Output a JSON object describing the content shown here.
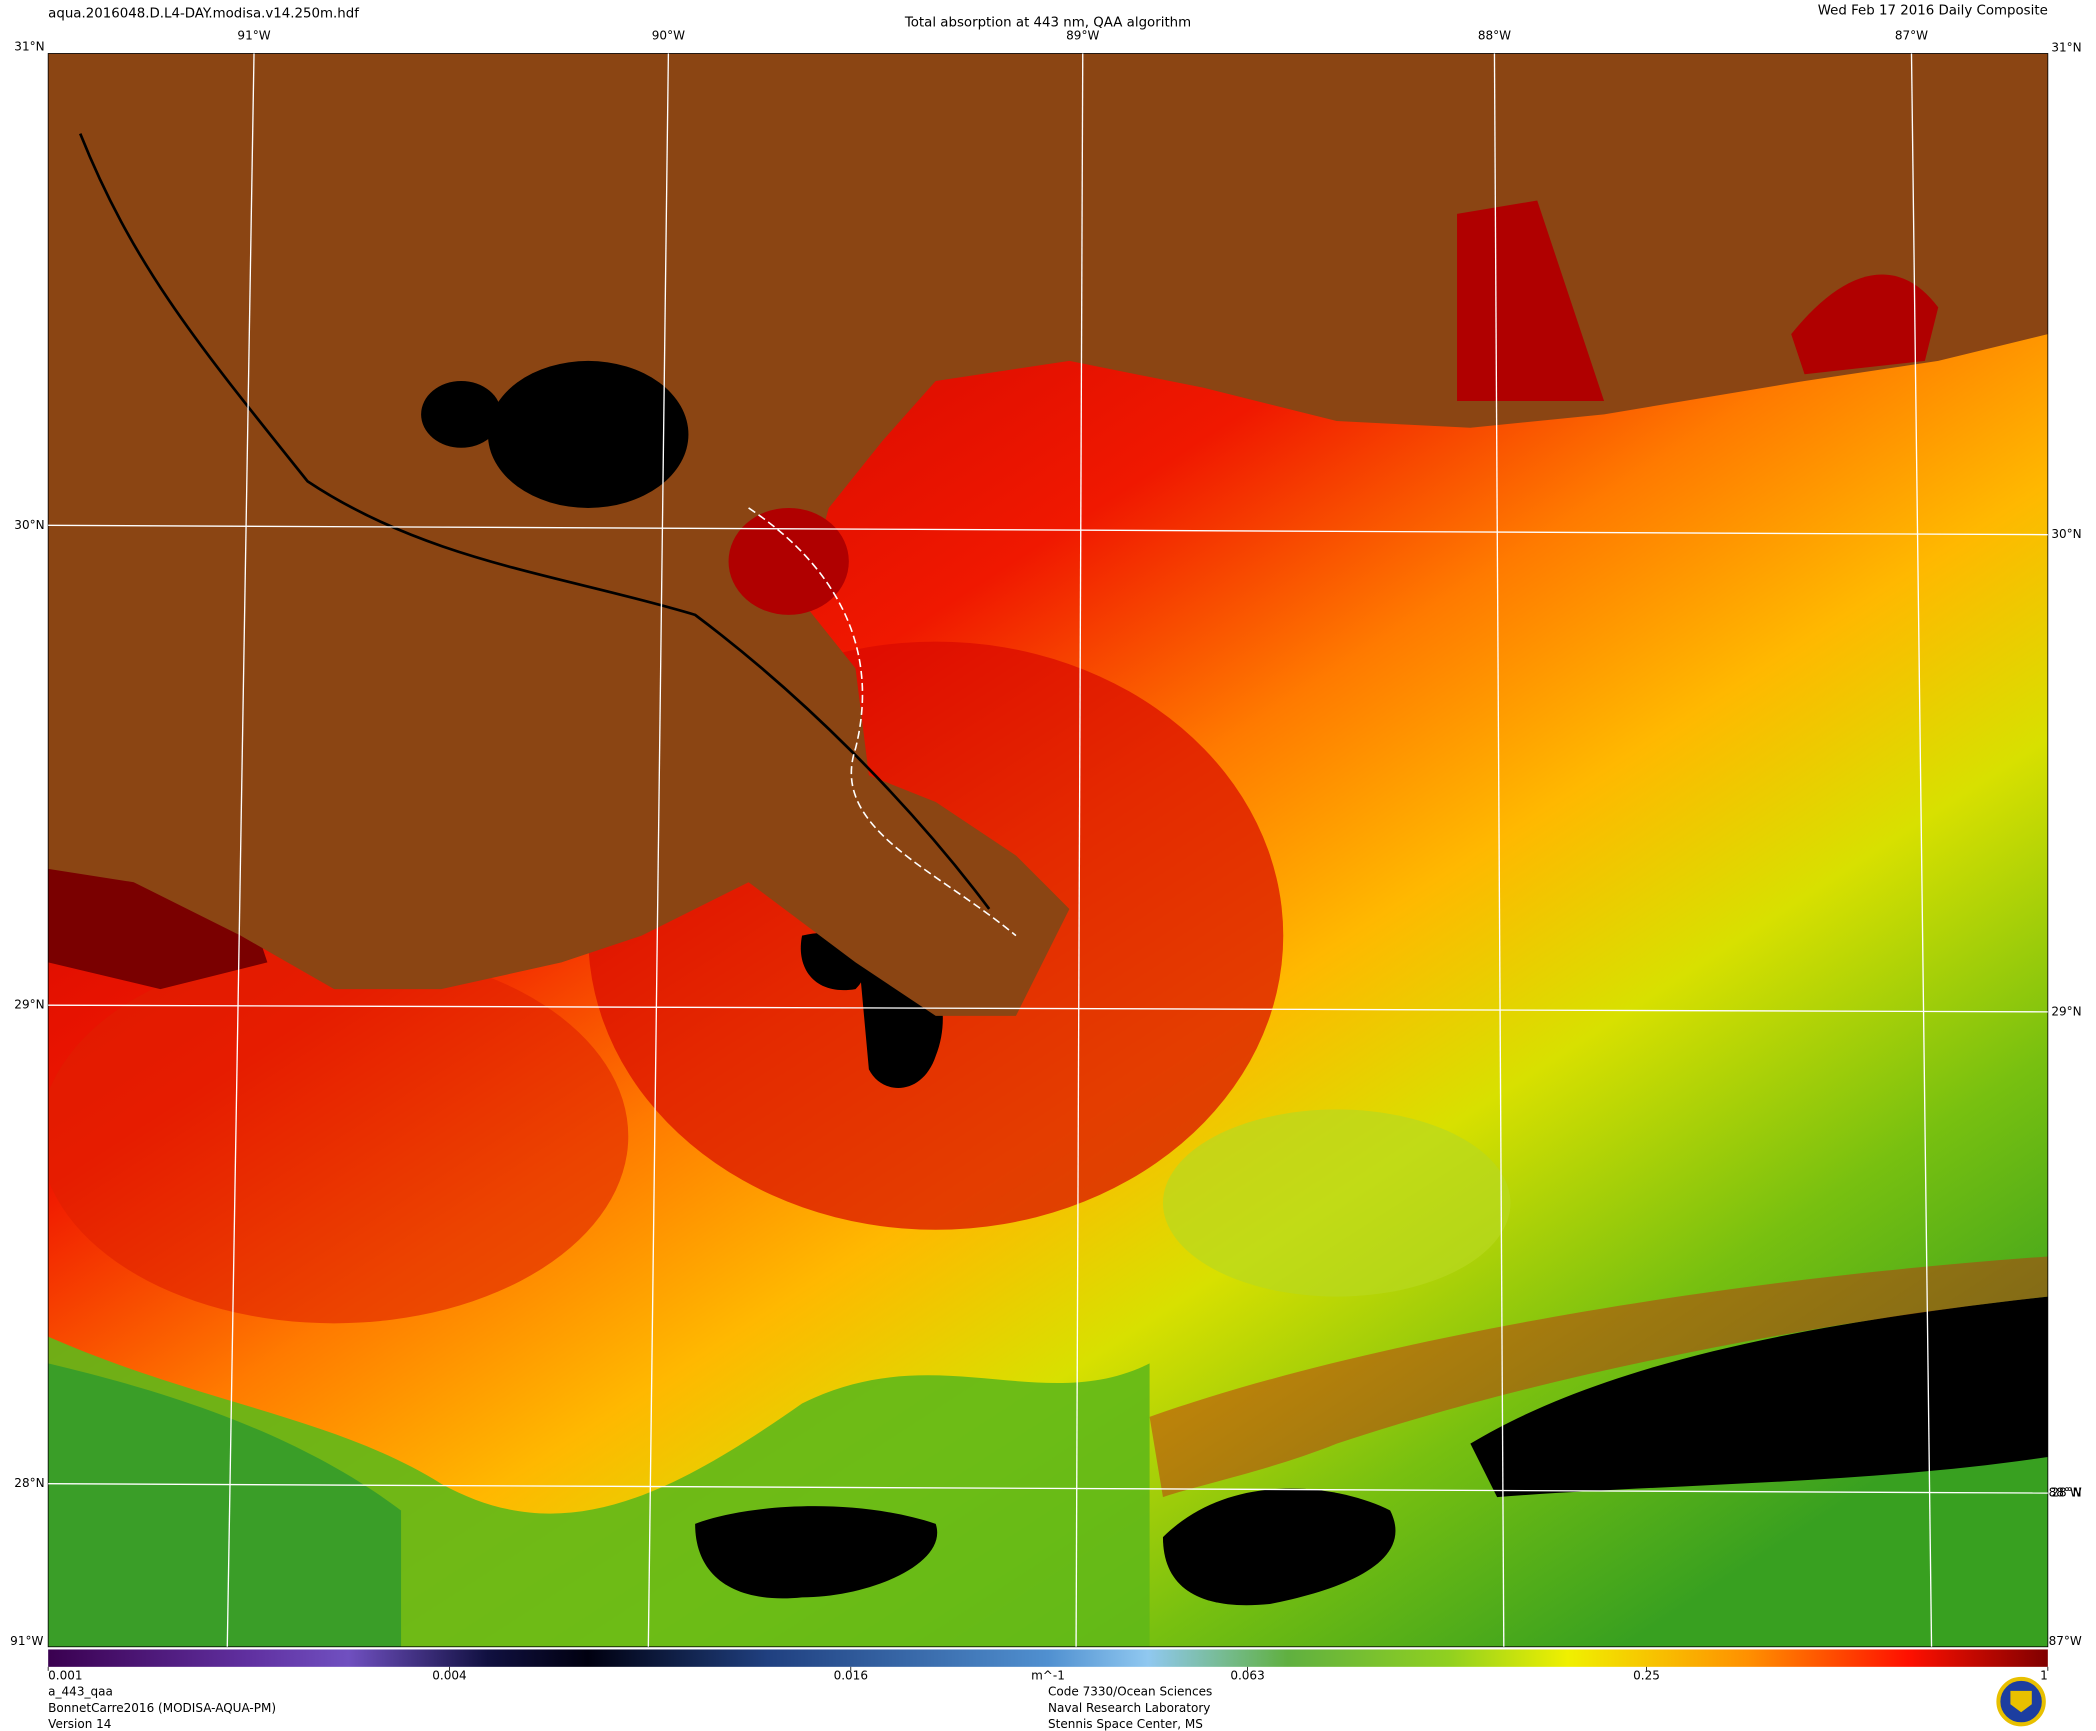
{
  "header": {
    "file": "aqua.2016048.D.L4-DAY.modisa.v14.250m.hdf",
    "title": "Total absorption at 443 nm, QAA algorithm",
    "date": "Wed Feb 17 2016 Daily Composite"
  },
  "map": {
    "lon_labels": [
      "91°W",
      "90°W",
      "89°W",
      "88°W",
      "87°W"
    ],
    "lat_labels": [
      "31°N",
      "30°N",
      "29°N",
      "28°N"
    ]
  },
  "colorbar": {
    "lim": [
      0.001,
      1
    ],
    "log": true,
    "ticks": [
      0.001,
      0.004,
      0.016,
      0.063,
      0.25,
      1
    ],
    "unit": "m^-1"
  },
  "footer": {
    "left": [
      "a_443_qaa",
      "BonnetCarre2016 (MODISA-AQUA-PM)",
      "Version 14"
    ],
    "center": [
      "Code 7330/Ocean Sciences",
      "Naval Research Laboratory",
      "Stennis Space Center, MS"
    ]
  }
}
